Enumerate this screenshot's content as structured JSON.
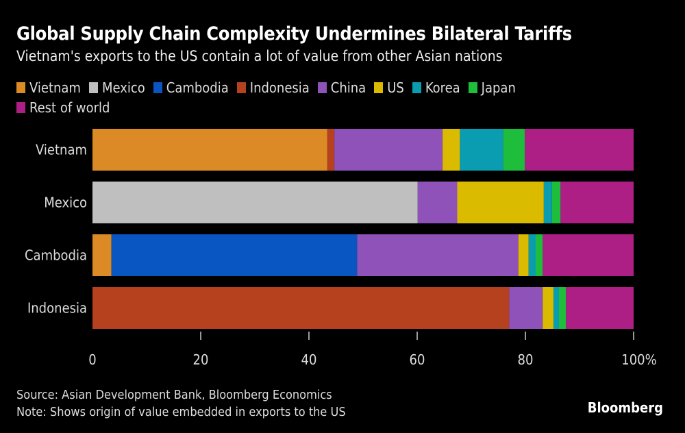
{
  "header": {
    "title": "Global Supply Chain Complexity Undermines Bilateral Tariffs",
    "subtitle": "Vietnam's exports to the US contain a lot of value from other Asian nations"
  },
  "footer": {
    "source": "Source: Asian Development Bank, Bloomberg Economics",
    "note": "Note: Shows origin of value embedded in exports to the US",
    "brand": "Bloomberg"
  },
  "chart_data": {
    "type": "bar",
    "orientation": "horizontal",
    "stacked": true,
    "title": "Global Supply Chain Complexity Undermines Bilateral Tariffs",
    "subtitle": "Vietnam's exports to the US contain a lot of value from other Asian nations",
    "categories": [
      "Vietnam",
      "Mexico",
      "Cambodia",
      "Indonesia"
    ],
    "xlim": [
      0,
      100
    ],
    "x_ticks": [
      0,
      20,
      40,
      60,
      80,
      100
    ],
    "x_tick_labels": [
      "0",
      "20",
      "40",
      "60",
      "80",
      "100%"
    ],
    "xlabel": "",
    "ylabel": "",
    "grid": false,
    "legend_position": "top",
    "series": [
      {
        "name": "Vietnam",
        "color": "#dc8a25",
        "values": [
          43.4,
          0,
          3.5,
          0
        ]
      },
      {
        "name": "Mexico",
        "color": "#bfbfbf",
        "values": [
          0,
          60.1,
          0,
          0
        ]
      },
      {
        "name": "Cambodia",
        "color": "#0955c2",
        "values": [
          0,
          0,
          45.4,
          0
        ]
      },
      {
        "name": "Indonesia",
        "color": "#b5411f",
        "values": [
          1.3,
          0,
          0,
          77.0
        ]
      },
      {
        "name": "China",
        "color": "#8f52b8",
        "values": [
          20.0,
          7.3,
          29.8,
          6.2
        ]
      },
      {
        "name": "US",
        "color": "#dbbb00",
        "values": [
          3.2,
          16.0,
          1.9,
          2.0
        ]
      },
      {
        "name": "Korea",
        "color": "#0a9cb0",
        "values": [
          8.0,
          1.5,
          1.3,
          1.0
        ]
      },
      {
        "name": "Japan",
        "color": "#1fbd3c",
        "values": [
          4.0,
          1.6,
          1.3,
          1.3
        ]
      },
      {
        "name": "Rest of world",
        "color": "#ae1f85",
        "values": [
          20.1,
          13.5,
          16.8,
          12.5
        ]
      }
    ]
  }
}
